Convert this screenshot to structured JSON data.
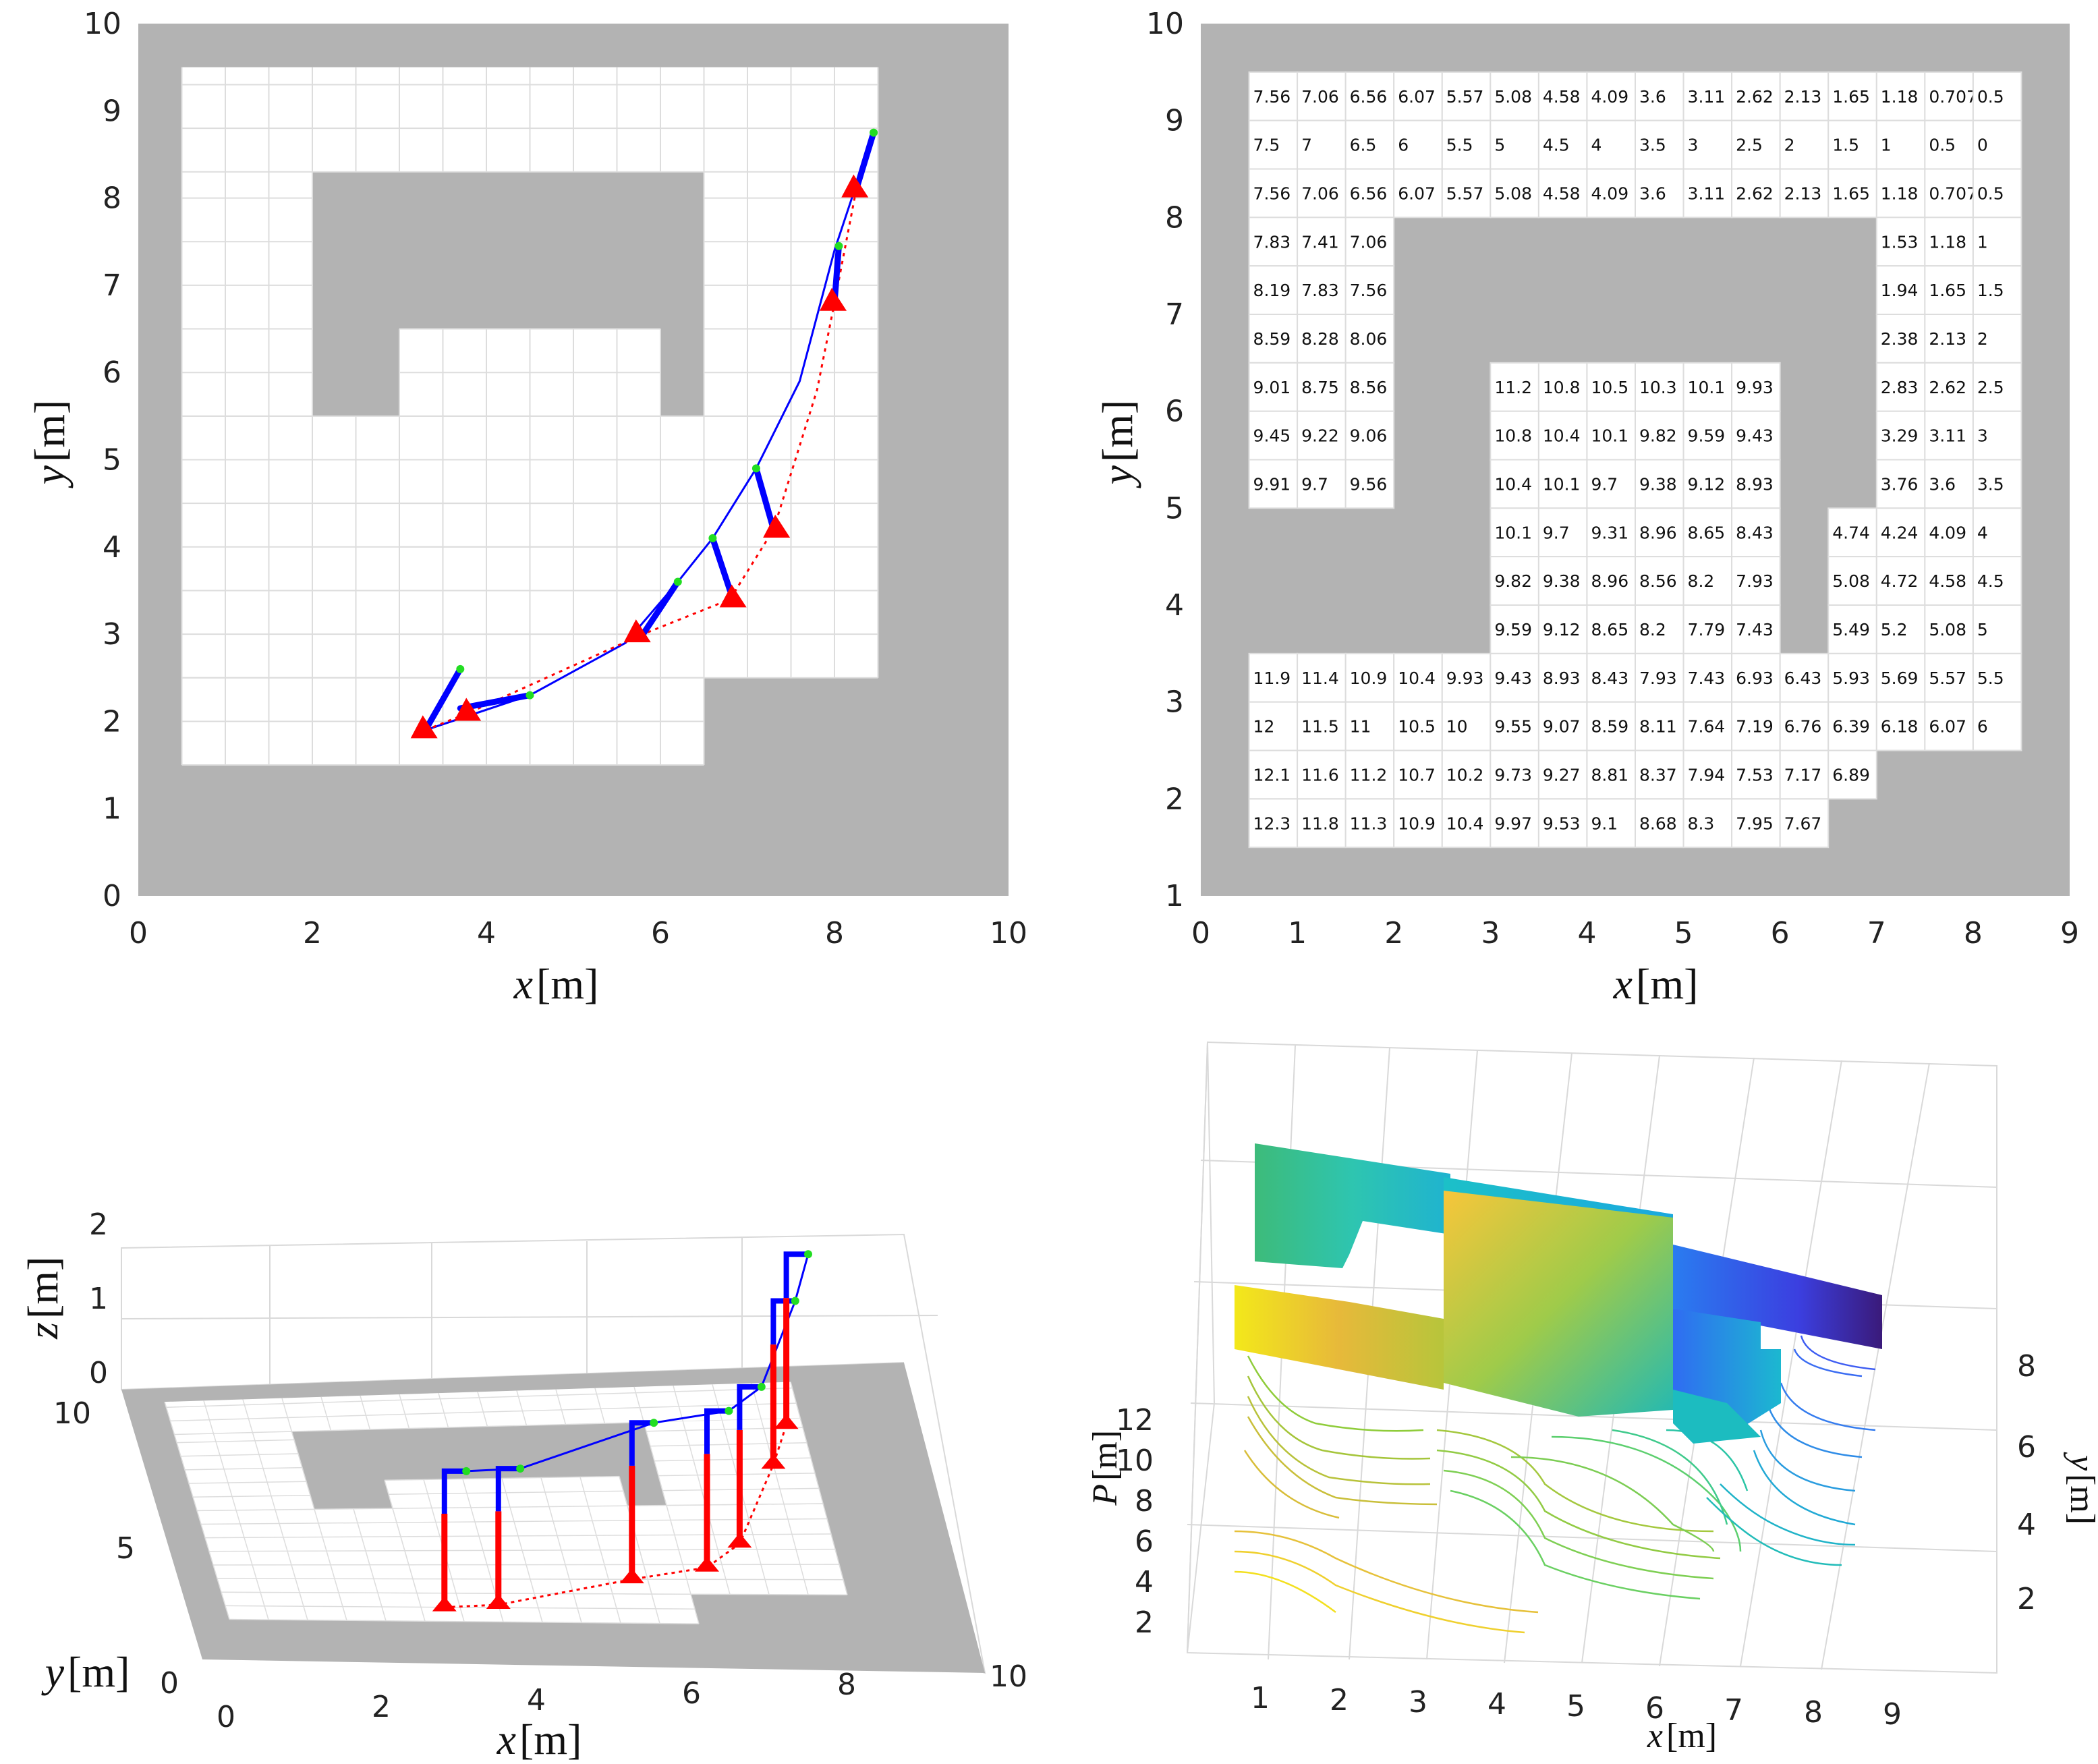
{
  "colors": {
    "obstacle": "#b3b3b3",
    "free": "#ffffff",
    "grid": "#dddddd",
    "blue": "#0000ff",
    "red": "#ff0000",
    "green": "#22dd22",
    "axis": "#333333"
  },
  "chart_data": [
    {
      "type": "line",
      "title": "",
      "xlabel": "x",
      "xunit": "[m]",
      "ylabel": "y",
      "yunit": "[m]",
      "xlim": [
        0,
        10
      ],
      "ylim": [
        0,
        10
      ],
      "xticks": [
        "0",
        "2",
        "4",
        "6",
        "8",
        "10"
      ],
      "yticks": [
        "0",
        "1",
        "2",
        "3",
        "4",
        "5",
        "6",
        "7",
        "8",
        "9",
        "10"
      ],
      "free_regions": [
        [
          0.5,
          1.5,
          6.5,
          2.5
        ],
        [
          0.5,
          2.5,
          8.5,
          5.5
        ],
        [
          0.5,
          5.5,
          2,
          8.3
        ],
        [
          0.5,
          8.3,
          8.5,
          9.5
        ],
        [
          3,
          2.5,
          6,
          6.5
        ],
        [
          6.5,
          5.5,
          8.5,
          8.3
        ]
      ],
      "series": [
        {
          "name": "blue path",
          "style": "solid",
          "points": [
            [
              3.3,
              1.9
            ],
            [
              4.5,
              2.3
            ],
            [
              5.6,
              2.9
            ],
            [
              6.2,
              3.6
            ],
            [
              6.6,
              4.1
            ],
            [
              7.1,
              4.9
            ],
            [
              7.6,
              5.9
            ],
            [
              8.0,
              7.4
            ],
            [
              8.45,
              8.75
            ]
          ]
        },
        {
          "name": "red path",
          "style": "dotted",
          "points": [
            [
              3.3,
              1.9
            ],
            [
              3.8,
              2.1
            ],
            [
              5.8,
              3.0
            ],
            [
              6.8,
              3.4
            ],
            [
              7.3,
              4.2
            ],
            [
              7.8,
              5.8
            ],
            [
              8.0,
              6.8
            ],
            [
              8.25,
              8.1
            ]
          ]
        }
      ],
      "legs": [
        {
          "blue": [
            [
              3.3,
              1.9
            ],
            [
              3.7,
              2.6
            ]
          ],
          "foot": [
            3.3,
            1.9
          ]
        },
        {
          "blue": [
            [
              3.7,
              2.15
            ],
            [
              4.5,
              2.3
            ]
          ],
          "foot": [
            3.8,
            2.1
          ]
        },
        {
          "blue": [
            [
              5.8,
              3.0
            ],
            [
              6.2,
              3.6
            ]
          ],
          "foot": [
            5.75,
            3.0
          ]
        },
        {
          "blue": [
            [
              6.8,
              3.5
            ],
            [
              6.6,
              4.1
            ]
          ],
          "foot": [
            6.85,
            3.4
          ]
        },
        {
          "blue": [
            [
              7.3,
              4.2
            ],
            [
              7.1,
              4.9
            ]
          ],
          "foot": [
            7.35,
            4.2
          ]
        },
        {
          "blue": [
            [
              8.0,
              6.8
            ],
            [
              8.05,
              7.45
            ]
          ],
          "foot": [
            8.0,
            6.8
          ]
        },
        {
          "blue": [
            [
              8.25,
              8.1
            ],
            [
              8.45,
              8.75
            ]
          ],
          "foot": [
            8.25,
            8.1
          ]
        }
      ]
    },
    {
      "type": "table",
      "title": "",
      "xlabel": "x",
      "xunit": "[m]",
      "ylabel": "y",
      "yunit": "[m]",
      "xlim": [
        0,
        9
      ],
      "ylim": [
        1,
        10
      ],
      "xticks": [
        "0",
        "1",
        "2",
        "3",
        "4",
        "5",
        "6",
        "7",
        "8",
        "9"
      ],
      "yticks": [
        "1",
        "2",
        "3",
        "4",
        "5",
        "6",
        "7",
        "8",
        "9",
        "10"
      ],
      "cols": 16,
      "rows": [
        [
          "7.56",
          "7.06",
          "6.56",
          "6.07",
          "5.57",
          "5.08",
          "4.58",
          "4.09",
          "3.6",
          "3.11",
          "2.62",
          "2.13",
          "1.65",
          "1.18",
          "0.707",
          "0.5"
        ],
        [
          "7.5",
          "7",
          "6.5",
          "6",
          "5.5",
          "5",
          "4.5",
          "4",
          "3.5",
          "3",
          "2.5",
          "2",
          "1.5",
          "1",
          "0.5",
          "0"
        ],
        [
          "7.56",
          "7.06",
          "6.56",
          "6.07",
          "5.57",
          "5.08",
          "4.58",
          "4.09",
          "3.6",
          "3.11",
          "2.62",
          "2.13",
          "1.65",
          "1.18",
          "0.707",
          "0.5"
        ],
        [
          "7.83",
          "7.41",
          "7.06",
          "",
          "",
          "",
          "",
          "",
          "",
          "",
          "",
          "",
          "",
          "1.53",
          "1.18",
          "1"
        ],
        [
          "8.19",
          "7.83",
          "7.56",
          "",
          "",
          "",
          "",
          "",
          "",
          "",
          "",
          "",
          "",
          "1.94",
          "1.65",
          "1.5"
        ],
        [
          "8.59",
          "8.28",
          "8.06",
          "",
          "",
          "",
          "",
          "",
          "",
          "",
          "",
          "",
          "",
          "2.38",
          "2.13",
          "2"
        ],
        [
          "9.01",
          "8.75",
          "8.56",
          "",
          "",
          "11.2",
          "10.8",
          "10.5",
          "10.3",
          "10.1",
          "9.93",
          "",
          "",
          "2.83",
          "2.62",
          "2.5"
        ],
        [
          "9.45",
          "9.22",
          "9.06",
          "",
          "",
          "10.8",
          "10.4",
          "10.1",
          "9.82",
          "9.59",
          "9.43",
          "",
          "",
          "3.29",
          "3.11",
          "3"
        ],
        [
          "9.91",
          "9.7",
          "9.56",
          "",
          "",
          "10.4",
          "10.1",
          "9.7",
          "9.38",
          "9.12",
          "8.93",
          "",
          "",
          "3.76",
          "3.6",
          "3.5"
        ],
        [
          "",
          "",
          "",
          "",
          "",
          "10.1",
          "9.7",
          "9.31",
          "8.96",
          "8.65",
          "8.43",
          "",
          "4.74",
          "4.24",
          "4.09",
          "4"
        ],
        [
          "",
          "",
          "",
          "",
          "",
          "9.82",
          "9.38",
          "8.96",
          "8.56",
          "8.2",
          "7.93",
          "",
          "5.08",
          "4.72",
          "4.58",
          "4.5"
        ],
        [
          "",
          "",
          "",
          "",
          "",
          "9.59",
          "9.12",
          "8.65",
          "8.2",
          "7.79",
          "7.43",
          "",
          "5.49",
          "5.2",
          "5.08",
          "5"
        ],
        [
          "11.9",
          "11.4",
          "10.9",
          "10.4",
          "9.93",
          "9.43",
          "8.93",
          "8.43",
          "7.93",
          "7.43",
          "6.93",
          "6.43",
          "5.93",
          "5.69",
          "5.57",
          "5.5"
        ],
        [
          "12",
          "11.5",
          "11",
          "10.5",
          "10",
          "9.55",
          "9.07",
          "8.59",
          "8.11",
          "7.64",
          "7.19",
          "6.76",
          "6.39",
          "6.18",
          "6.07",
          "6"
        ],
        [
          "12.1",
          "11.6",
          "11.2",
          "10.7",
          "10.2",
          "9.73",
          "9.27",
          "8.81",
          "8.37",
          "7.94",
          "7.53",
          "7.17",
          "6.89",
          "",
          "",
          ""
        ],
        [
          "12.3",
          "11.8",
          "11.3",
          "10.9",
          "10.4",
          "9.97",
          "9.53",
          "9.1",
          "8.68",
          "8.3",
          "7.95",
          "7.67",
          "",
          "",
          "",
          ""
        ]
      ]
    },
    {
      "type": "line",
      "title": "",
      "xlabel": "x",
      "xunit": "[m]",
      "ylabel": "y",
      "yunit": "[m]",
      "zlabel": "z",
      "zunit": "[m]",
      "xticks": [
        "0",
        "2",
        "4",
        "6",
        "8",
        "10"
      ],
      "yticks": [
        "0",
        "5",
        "10"
      ],
      "zticks": [
        "0",
        "1",
        "2"
      ],
      "legs_3d": [
        {
          "x": 3.3,
          "y": 2.0,
          "knee": 0.7
        },
        {
          "x": 4.0,
          "y": 2.1,
          "knee": 0.7
        },
        {
          "x": 5.8,
          "y": 3.0,
          "knee": 0.85
        },
        {
          "x": 6.8,
          "y": 3.4,
          "knee": 0.85
        },
        {
          "x": 7.3,
          "y": 4.2,
          "knee": 0.85
        },
        {
          "x": 8.0,
          "y": 6.8,
          "knee": 0.9
        },
        {
          "x": 8.3,
          "y": 8.1,
          "knee": 0.95
        }
      ]
    },
    {
      "type": "heatmap",
      "title": "",
      "xlabel": "x",
      "xunit": "[m]",
      "ylabel": "y",
      "yunit": "[m]",
      "zlabel": "P",
      "zunit": "[m]",
      "xticks": [
        "1",
        "2",
        "3",
        "4",
        "5",
        "6",
        "7",
        "8",
        "9"
      ],
      "yticks": [
        "2",
        "4",
        "6",
        "8"
      ],
      "zticks": [
        "2",
        "4",
        "6",
        "8",
        "10",
        "12"
      ],
      "colormap": "parula"
    }
  ]
}
